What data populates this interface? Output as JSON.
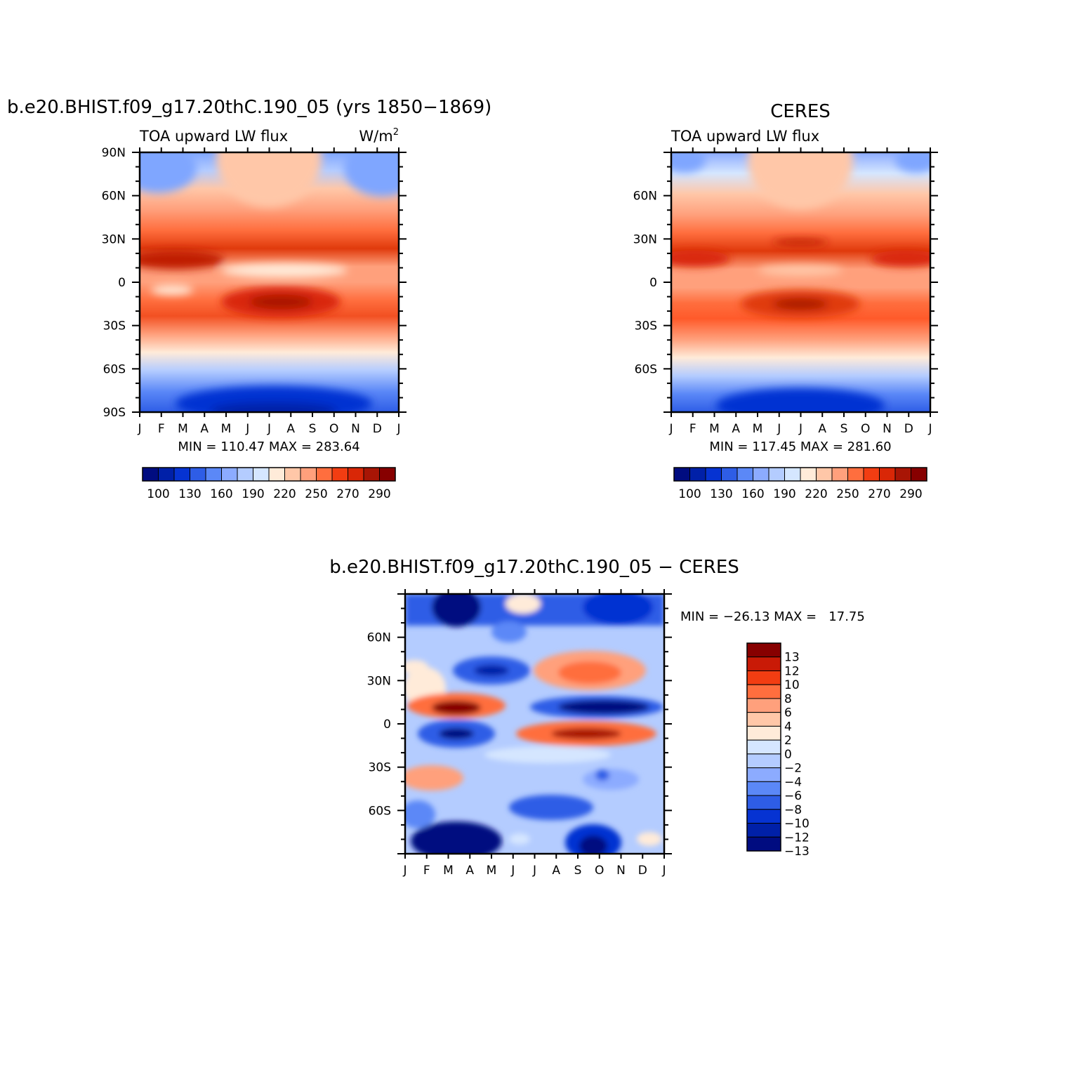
{
  "months": [
    "J",
    "F",
    "M",
    "A",
    "M",
    "J",
    "J",
    "A",
    "S",
    "O",
    "N",
    "D",
    "J"
  ],
  "colorbar_colors": [
    "#000c80",
    "#0020a8",
    "#0633d2",
    "#2e5de6",
    "#5b88f7",
    "#8cabff",
    "#b4ccff",
    "#d5e6ff",
    "#ffebd9",
    "#ffc7a8",
    "#ffa07c",
    "#ff6e3e",
    "#f23d12",
    "#d92707",
    "#a81505",
    "#870000"
  ],
  "diff_colors": [
    "#000c80",
    "#0020a8",
    "#0633d2",
    "#2e5de6",
    "#5b88f7",
    "#8cabff",
    "#b4ccff",
    "#d5e6ff",
    "#ffebd9",
    "#ffc7a8",
    "#ffa07c",
    "#ff6e3e",
    "#f23d12",
    "#c91a06",
    "#870000"
  ],
  "panel1": {
    "title": "b.e20.BHIST.f09_g17.20thC.190_05 (yrs 1850−1869)",
    "left_label": "TOA upward LW flux",
    "units_base": "W/m",
    "units_exp": "2",
    "stats": "MIN = 110.47 MAX = 283.64",
    "y_ticks": [
      "90N",
      "60N",
      "30N",
      "0",
      "30S",
      "60S",
      "90S"
    ],
    "cbar_labels": [
      "100",
      "130",
      "160",
      "190",
      "220",
      "250",
      "270",
      "290"
    ]
  },
  "panel2": {
    "title": "CERES",
    "left_label": "TOA upward LW flux",
    "stats": "MIN = 117.45 MAX = 281.60",
    "y_ticks": [
      "60N",
      "30N",
      "0",
      "30S",
      "60S"
    ],
    "cbar_labels": [
      "100",
      "130",
      "160",
      "190",
      "220",
      "250",
      "270",
      "290"
    ]
  },
  "panel3": {
    "title": "b.e20.BHIST.f09_g17.20thC.190_05 − CERES",
    "stats": "MIN = −26.13 MAX =   17.75",
    "y_ticks": [
      "60N",
      "30N",
      "0",
      "30S",
      "60S"
    ],
    "cbar_labels": [
      "13",
      "12",
      "10",
      "8",
      "6",
      "4",
      "2",
      "0",
      "−2",
      "−4",
      "−6",
      "−8",
      "−10",
      "−12",
      "−13"
    ]
  },
  "chart_data": [
    {
      "type": "heatmap",
      "title": "b.e20.BHIST.f09_g17.20thC.190_05 (yrs 1850−1869)",
      "subtitle": "TOA upward LW flux",
      "units": "W/m2",
      "x": [
        "J",
        "F",
        "M",
        "A",
        "M",
        "J",
        "J",
        "A",
        "S",
        "O",
        "N",
        "D",
        "J"
      ],
      "y_range": [
        "90S",
        "90N"
      ],
      "min": 110.47,
      "max": 283.64,
      "levels": [
        100,
        110,
        120,
        130,
        140,
        150,
        160,
        170,
        180,
        190,
        200,
        210,
        220,
        230,
        240,
        250,
        260,
        270,
        280,
        290
      ],
      "features": [
        "NH subtropical max ~280 near 15N in Feb-Mar",
        "SH subtropical max ~280 near 15S in Jun-Aug",
        "Polar minima ~110-130 in austral winter"
      ]
    },
    {
      "type": "heatmap",
      "title": "CERES",
      "subtitle": "TOA upward LW flux",
      "x": [
        "J",
        "F",
        "M",
        "A",
        "M",
        "J",
        "J",
        "A",
        "S",
        "O",
        "N",
        "D",
        "J"
      ],
      "y_range": [
        "90S",
        "90N"
      ],
      "min": 117.45,
      "max": 281.6,
      "levels": [
        100,
        110,
        120,
        130,
        140,
        150,
        160,
        170,
        180,
        190,
        200,
        210,
        220,
        230,
        240,
        250,
        260,
        270,
        280,
        290
      ]
    },
    {
      "type": "heatmap",
      "title": "b.e20.BHIST.f09_g17.20thC.190_05 − CERES",
      "x": [
        "J",
        "F",
        "M",
        "A",
        "M",
        "J",
        "J",
        "A",
        "S",
        "O",
        "N",
        "D",
        "J"
      ],
      "y_range": [
        "90S",
        "90N"
      ],
      "min": -26.13,
      "max": 17.75,
      "levels": [
        -13,
        -12,
        -10,
        -8,
        -6,
        -4,
        -2,
        0,
        2,
        4,
        6,
        8,
        10,
        12,
        13
      ]
    }
  ]
}
